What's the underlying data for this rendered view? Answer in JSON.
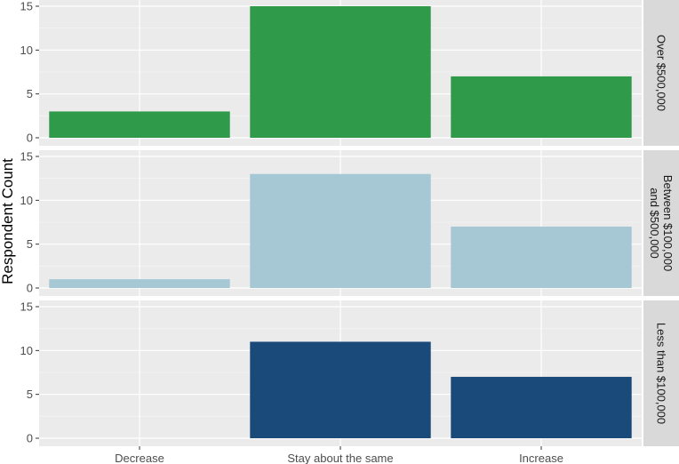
{
  "chart_data": {
    "type": "bar",
    "ylabel": "Respondent Count",
    "xlabel": "",
    "categories": [
      "Decrease",
      "Stay about the same",
      "Increase"
    ],
    "ylim": [
      0,
      15
    ],
    "yticks": [
      0,
      5,
      10,
      15
    ],
    "grid": true,
    "facets": [
      {
        "label_lines": [
          "Over $500,000"
        ],
        "color": "#2e9a4a",
        "values": [
          3,
          15,
          7
        ]
      },
      {
        "label_lines": [
          "Between $100,000",
          "and $500,000"
        ],
        "color": "#a6c7d4",
        "values": [
          1,
          13,
          7
        ]
      },
      {
        "label_lines": [
          "Less than $100,000"
        ],
        "color": "#1a4a7a",
        "values": [
          0,
          11,
          7
        ]
      }
    ]
  }
}
